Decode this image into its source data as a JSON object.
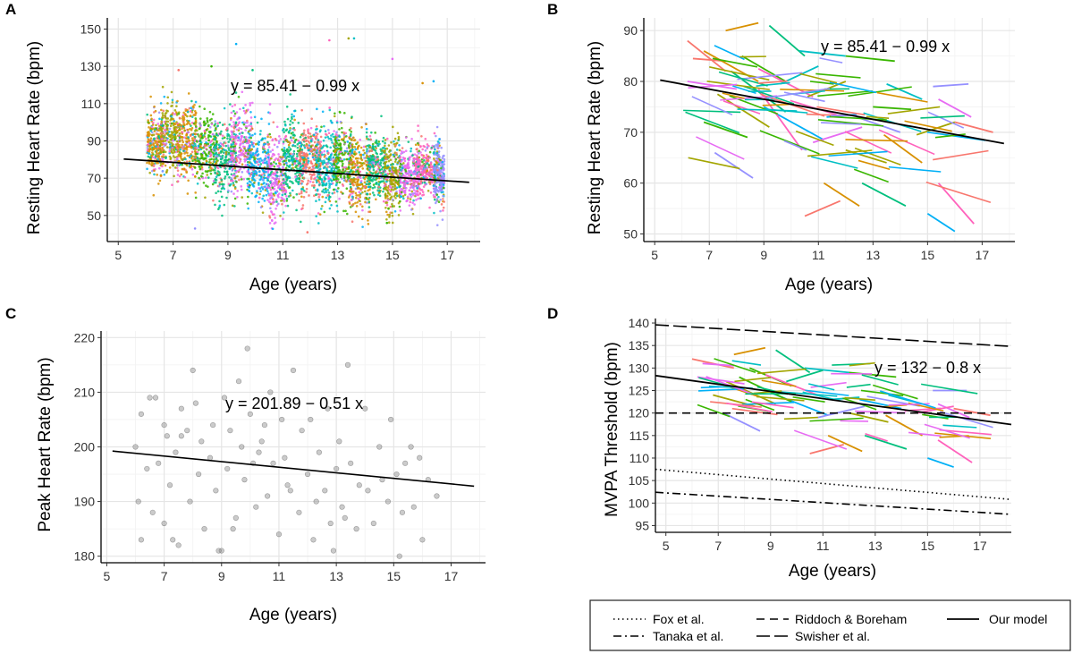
{
  "panels": {
    "A": {
      "letter": "A",
      "xlabel": "Age (years)",
      "ylabel": "Resting Heart Rate (bpm)",
      "equation": "y = 85.41 − 0.99 x"
    },
    "B": {
      "letter": "B",
      "xlabel": "Age (years)",
      "ylabel": "Resting Heart Rate (bpm)",
      "equation": "y = 85.41 − 0.99 x"
    },
    "C": {
      "letter": "C",
      "xlabel": "Age (years)",
      "ylabel": "Peak Heart Rate (bpm)",
      "equation": "y = 201.89 − 0.51 x"
    },
    "D": {
      "letter": "D",
      "xlabel": "Age (years)",
      "ylabel": "MVPA Threshold (bpm)",
      "equation": "y = 132 − 0.8 x"
    }
  },
  "legend": {
    "fox": "Fox et al.",
    "riddoch": "Riddoch & Boreham",
    "our_model": "Our model",
    "tanaka": "Tanaka et al.",
    "swisher": "Swisher et al."
  },
  "colors": {
    "palette": [
      "#F8766D",
      "#D89000",
      "#A3A500",
      "#39B600",
      "#00BF7D",
      "#00BFC4",
      "#00B0F6",
      "#9590FF",
      "#E76BF3",
      "#FF62BC"
    ],
    "scatter_gray": "#8c8c8c",
    "fit_line": "#000000"
  },
  "chart_data": [
    {
      "panel": "A",
      "type": "scatter",
      "title": "",
      "xlabel": "Age (years)",
      "ylabel": "Resting Heart Rate (bpm)",
      "xlim": [
        4.6,
        18.2
      ],
      "ylim": [
        36,
        156
      ],
      "xticks": [
        5,
        7,
        9,
        11,
        13,
        15,
        17
      ],
      "yticks": [
        50,
        70,
        90,
        110,
        130,
        150
      ],
      "fit": {
        "intercept": 85.41,
        "slope": -0.99,
        "x_range": [
          5.2,
          17.8
        ]
      },
      "description": "Dense per-minute resting heart rate points, colored by participant; approx. range 45-125 bpm across ages 6-17"
    },
    {
      "panel": "B",
      "type": "line",
      "title": "",
      "xlabel": "Age (years)",
      "ylabel": "Resting Heart Rate (bpm)",
      "xlim": [
        4.6,
        18.2
      ],
      "ylim": [
        48.5,
        92.5
      ],
      "xticks": [
        5,
        7,
        9,
        11,
        13,
        15,
        17
      ],
      "yticks": [
        50,
        60,
        70,
        80,
        90
      ],
      "fit": {
        "intercept": 85.41,
        "slope": -0.99,
        "x_range": [
          5.2,
          17.8
        ]
      },
      "series": [
        {
          "x": [
            6.2,
            7.6
          ],
          "y": [
            88.0,
            82.0
          ]
        },
        {
          "x": [
            7.6,
            8.8
          ],
          "y": [
            90.0,
            91.5
          ]
        },
        {
          "x": [
            7.3,
            9.2
          ],
          "y": [
            77.5,
            71.0
          ]
        },
        {
          "x": [
            8.2,
            9.8
          ],
          "y": [
            85.0,
            80.0
          ]
        },
        {
          "x": [
            9.2,
            10.5
          ],
          "y": [
            91.0,
            85.0
          ]
        },
        {
          "x": [
            10.3,
            12.0
          ],
          "y": [
            86.0,
            85.0
          ]
        },
        {
          "x": [
            9.0,
            11.2
          ],
          "y": [
            75.0,
            68.5
          ]
        },
        {
          "x": [
            7.2,
            8.6
          ],
          "y": [
            66.0,
            61.0
          ]
        },
        {
          "x": [
            6.2,
            8.0
          ],
          "y": [
            80.0,
            78.5
          ]
        },
        {
          "x": [
            8.8,
            10.8
          ],
          "y": [
            82.5,
            77.0
          ]
        },
        {
          "x": [
            10.5,
            11.8
          ],
          "y": [
            53.5,
            56.5
          ]
        },
        {
          "x": [
            11.2,
            12.5
          ],
          "y": [
            60.0,
            55.5
          ]
        },
        {
          "x": [
            12.0,
            13.5
          ],
          "y": [
            66.5,
            64.0
          ]
        },
        {
          "x": [
            12.0,
            13.8
          ],
          "y": [
            85.0,
            84.0
          ]
        },
        {
          "x": [
            12.6,
            14.2
          ],
          "y": [
            60.0,
            55.5
          ]
        },
        {
          "x": [
            13.5,
            14.8
          ],
          "y": [
            79.5,
            76.5
          ]
        },
        {
          "x": [
            15.0,
            16.0
          ],
          "y": [
            54.0,
            50.5
          ]
        },
        {
          "x": [
            15.2,
            16.5
          ],
          "y": [
            79.0,
            79.5
          ]
        },
        {
          "x": [
            15.4,
            16.6
          ],
          "y": [
            76.5,
            73.0
          ]
        },
        {
          "x": [
            15.4,
            16.7
          ],
          "y": [
            60.0,
            52.0
          ]
        },
        {
          "x": [
            16.0,
            17.4
          ],
          "y": [
            72.0,
            70.0
          ]
        },
        {
          "x": [
            13.4,
            14.8
          ],
          "y": [
            69.5,
            64.0
          ]
        },
        {
          "x": [
            14.6,
            16.0
          ],
          "y": [
            69.5,
            72.0
          ]
        },
        {
          "x": [
            6.8,
            8.4
          ],
          "y": [
            72.0,
            69.0
          ]
        },
        {
          "x": [
            7.8,
            9.8
          ],
          "y": [
            82.0,
            74.0
          ]
        },
        {
          "x": [
            9.6,
            11.0
          ],
          "y": [
            79.5,
            83.0
          ]
        },
        {
          "x": [
            11.3,
            12.4
          ],
          "y": [
            73.0,
            73.5
          ]
        },
        {
          "x": [
            12.4,
            14.0
          ],
          "y": [
            73.0,
            70.0
          ]
        },
        {
          "x": [
            10.8,
            12.6
          ],
          "y": [
            68.0,
            71.0
          ]
        },
        {
          "x": [
            8.8,
            10.4
          ],
          "y": [
            78.5,
            66.5
          ]
        },
        {
          "x": [
            6.4,
            7.6
          ],
          "y": [
            84.5,
            84.0
          ]
        },
        {
          "x": [
            6.8,
            8.8
          ],
          "y": [
            86.0,
            80.0
          ]
        },
        {
          "x": [
            10.6,
            12.0
          ],
          "y": [
            77.0,
            80.0
          ]
        },
        {
          "x": [
            13.0,
            14.4
          ],
          "y": [
            75.0,
            74.5
          ]
        }
      ],
      "description": "Per-participant within-person regression line segments, colored by participant"
    },
    {
      "panel": "C",
      "type": "scatter",
      "title": "",
      "xlabel": "Age (years)",
      "ylabel": "Peak Heart Rate (bpm)",
      "xlim": [
        4.8,
        18.2
      ],
      "ylim": [
        178.8,
        221.2
      ],
      "xticks": [
        5,
        7,
        9,
        11,
        13,
        15,
        17
      ],
      "yticks": [
        180,
        190,
        200,
        210,
        220
      ],
      "fit": {
        "intercept": 201.89,
        "slope": -0.51,
        "x_range": [
          5.2,
          17.8
        ]
      },
      "x": [
        6.0,
        6.1,
        6.2,
        6.2,
        6.4,
        6.6,
        6.7,
        6.8,
        7.0,
        7.0,
        7.1,
        7.2,
        7.4,
        7.5,
        7.6,
        7.8,
        7.9,
        8.0,
        8.2,
        8.3,
        8.4,
        8.6,
        8.7,
        8.8,
        9.0,
        9.1,
        9.2,
        9.3,
        9.5,
        9.6,
        9.7,
        9.8,
        9.9,
        10.0,
        10.2,
        10.3,
        10.5,
        10.6,
        10.7,
        10.8,
        11.0,
        11.1,
        11.2,
        11.4,
        11.5,
        11.7,
        11.8,
        12.0,
        12.1,
        12.2,
        12.4,
        12.6,
        12.7,
        12.8,
        13.0,
        13.1,
        13.2,
        13.4,
        13.5,
        13.7,
        13.8,
        14.0,
        14.1,
        14.3,
        14.5,
        14.6,
        14.8,
        14.9,
        15.1,
        15.2,
        15.4,
        15.6,
        15.7,
        15.9,
        16.0,
        16.2,
        16.5,
        7.6,
        8.1,
        9.4,
        10.1,
        11.3,
        12.3,
        13.3,
        8.9,
        10.4,
        7.3,
        6.5,
        12.9,
        15.3
      ],
      "y": [
        200,
        190,
        206,
        183,
        196,
        188,
        209,
        197,
        204,
        186,
        202,
        193,
        199,
        182,
        207,
        203,
        190,
        214,
        195,
        201,
        185,
        198,
        204,
        192,
        181,
        209,
        196,
        203,
        187,
        212,
        200,
        194,
        218,
        206,
        189,
        199,
        204,
        191,
        210,
        197,
        184,
        205,
        198,
        192,
        214,
        188,
        203,
        195,
        205,
        183,
        199,
        192,
        207,
        186,
        196,
        201,
        189,
        215,
        197,
        185,
        193,
        207,
        192,
        186,
        200,
        194,
        190,
        205,
        195,
        180,
        197,
        200,
        189,
        198,
        183,
        194,
        191,
        202,
        208,
        185,
        197,
        193,
        190,
        187,
        181,
        201,
        183,
        209,
        181,
        188
      ],
      "description": "One peak heart rate point per participant visit (gray, semi-transparent)"
    },
    {
      "panel": "D",
      "type": "line",
      "title": "",
      "xlabel": "Age (years)",
      "ylabel": "MVPA Threshold (bpm)",
      "xlim": [
        4.6,
        18.2
      ],
      "ylim": [
        93.5,
        141.0
      ],
      "xticks": [
        5,
        7,
        9,
        11,
        13,
        15,
        17
      ],
      "yticks": [
        95,
        100,
        105,
        110,
        115,
        120,
        125,
        130,
        135,
        140
      ],
      "fit": {
        "intercept": 132,
        "slope": -0.8,
        "x_range": [
          4.6,
          18.2
        ]
      },
      "reference_lines": [
        {
          "name": "Fox et al.",
          "style": "dotted",
          "y_at_xmin": 107.5,
          "y_at_xmax": 100.8
        },
        {
          "name": "Tanaka et al.",
          "style": "dashdot",
          "y_at_xmin": 102.4,
          "y_at_xmax": 97.5
        },
        {
          "name": "Riddoch & Boreham",
          "style": "dashed",
          "y_at_xmin": 120,
          "y_at_xmax": 120
        },
        {
          "name": "Swisher et al.",
          "style": "longdash",
          "y_at_xmin": 139.6,
          "y_at_xmax": 134.8
        }
      ],
      "series": [
        {
          "x": [
            6.0,
            7.6
          ],
          "y": [
            132,
            130
          ]
        },
        {
          "x": [
            7.6,
            8.8
          ],
          "y": [
            133,
            134.5
          ]
        },
        {
          "x": [
            7.3,
            9.2
          ],
          "y": [
            127,
            122
          ]
        },
        {
          "x": [
            8.2,
            9.8
          ],
          "y": [
            130,
            126
          ]
        },
        {
          "x": [
            9.2,
            10.5
          ],
          "y": [
            134,
            129
          ]
        },
        {
          "x": [
            10.3,
            12.0
          ],
          "y": [
            130,
            129
          ]
        },
        {
          "x": [
            9.0,
            11.2
          ],
          "y": [
            124.5,
            119.5
          ]
        },
        {
          "x": [
            7.2,
            8.6
          ],
          "y": [
            120,
            116
          ]
        },
        {
          "x": [
            6.2,
            8.0
          ],
          "y": [
            128,
            126.5
          ]
        },
        {
          "x": [
            8.8,
            10.8
          ],
          "y": [
            128.5,
            124
          ]
        },
        {
          "x": [
            10.5,
            11.8
          ],
          "y": [
            111,
            113
          ]
        },
        {
          "x": [
            11.2,
            12.5
          ],
          "y": [
            115,
            111.5
          ]
        },
        {
          "x": [
            12.0,
            13.5
          ],
          "y": [
            120,
            118
          ]
        },
        {
          "x": [
            12.0,
            13.8
          ],
          "y": [
            129,
            128
          ]
        },
        {
          "x": [
            12.6,
            14.2
          ],
          "y": [
            115,
            112
          ]
        },
        {
          "x": [
            13.5,
            14.8
          ],
          "y": [
            124,
            122
          ]
        },
        {
          "x": [
            15.0,
            16.0
          ],
          "y": [
            110,
            108
          ]
        },
        {
          "x": [
            15.2,
            16.5
          ],
          "y": [
            125,
            125
          ]
        },
        {
          "x": [
            15.4,
            16.6
          ],
          "y": [
            122,
            119
          ]
        },
        {
          "x": [
            15.4,
            16.7
          ],
          "y": [
            114,
            109
          ]
        },
        {
          "x": [
            16.0,
            17.4
          ],
          "y": [
            121,
            119.5
          ]
        },
        {
          "x": [
            13.4,
            14.8
          ],
          "y": [
            119.5,
            115
          ]
        },
        {
          "x": [
            6.8,
            8.4
          ],
          "y": [
            124,
            121.5
          ]
        },
        {
          "x": [
            7.8,
            9.8
          ],
          "y": [
            128,
            122.5
          ]
        },
        {
          "x": [
            9.6,
            11.0
          ],
          "y": [
            127,
            129.5
          ]
        },
        {
          "x": [
            11.3,
            12.4
          ],
          "y": [
            123,
            123.5
          ]
        },
        {
          "x": [
            12.4,
            14.0
          ],
          "y": [
            123,
            121
          ]
        },
        {
          "x": [
            10.8,
            12.6
          ],
          "y": [
            119,
            121.5
          ]
        },
        {
          "x": [
            6.4,
            7.6
          ],
          "y": [
            131,
            130.5
          ]
        },
        {
          "x": [
            14.6,
            16.0
          ],
          "y": [
            120,
            121.5
          ]
        }
      ],
      "description": "Per-participant MVPA threshold trajectories with reference threshold lines"
    }
  ]
}
